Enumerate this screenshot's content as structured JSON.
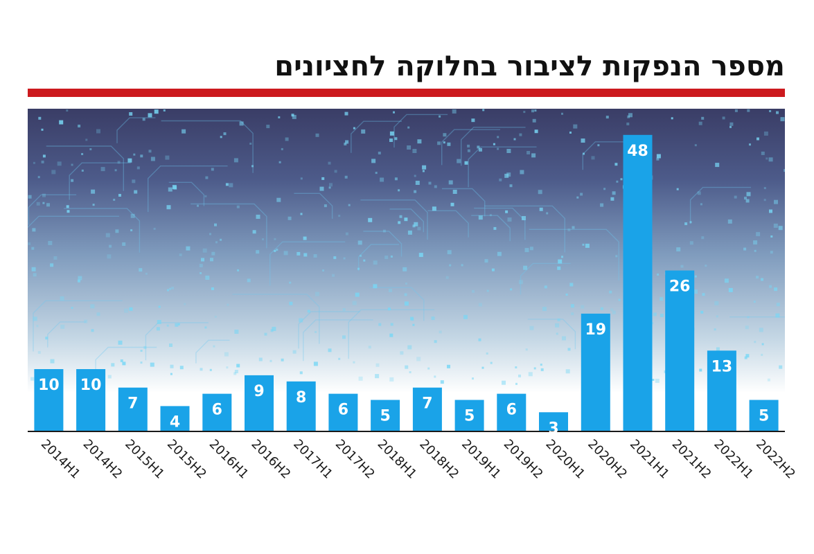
{
  "chart_data": {
    "type": "bar",
    "title": "מספר הנפקות לציבור בחלוקה לחציונים",
    "xlabel": "",
    "ylabel": "",
    "ylim": [
      0,
      50
    ],
    "grid": false,
    "categories": [
      "2014H1",
      "2014H2",
      "2015H1",
      "2015H2",
      "2016H1",
      "2016H2",
      "2017H1",
      "2017H2",
      "2018H1",
      "2018H2",
      "2019H1",
      "2019H2",
      "2020H1",
      "2020H2",
      "2021H1",
      "2021H2",
      "2022H1",
      "2022H2"
    ],
    "values": [
      10,
      10,
      7,
      4,
      6,
      9,
      8,
      6,
      5,
      7,
      5,
      6,
      3,
      19,
      48,
      26,
      13,
      5
    ],
    "bar_color": "#1aa3e8",
    "title_rule_color": "#cc1a1e",
    "label_color": "#ffffff"
  }
}
